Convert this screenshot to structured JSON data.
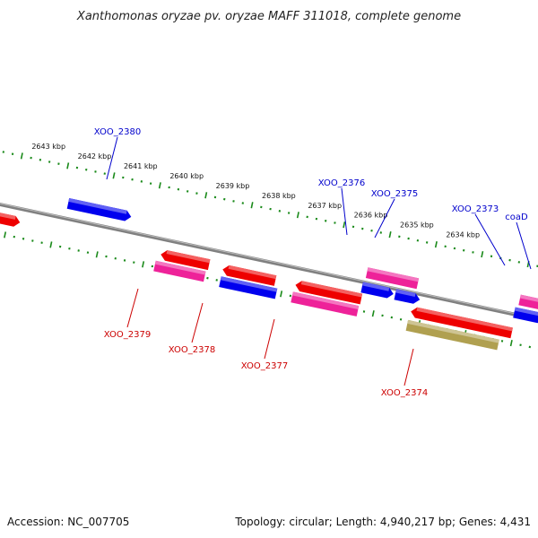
{
  "title": "Xanthomonas oryzae pv. oryzae MAFF 311018, complete genome",
  "footer": {
    "accession": "Accession: NC_007705",
    "stats": "Topology: circular; Length: 4,940,217 bp; Genes: 4,431"
  },
  "colors": {
    "backbone": "#808080",
    "tick_track": "#1a8a1a",
    "label_forward": "#0000cc",
    "label_reverse": "#cc0000",
    "gene_red": "#ee0000",
    "gene_blue": "#0000ee",
    "gene_pink": "#ee2299",
    "gene_olive": "#b0a050"
  },
  "scale": {
    "ticks": [
      {
        "label": "2643 kbp"
      },
      {
        "label": "2642 kbp"
      },
      {
        "label": "2641 kbp"
      },
      {
        "label": "2640 kbp"
      },
      {
        "label": "2639 kbp"
      },
      {
        "label": "2638 kbp"
      },
      {
        "label": "2637 kbp"
      },
      {
        "label": "2636 kbp"
      },
      {
        "label": "2635 kbp"
      },
      {
        "label": "2634 kbp"
      }
    ]
  },
  "gene_labels": [
    {
      "name": "XOO_2380",
      "strand": "forward"
    },
    {
      "name": "XOO_2376",
      "strand": "forward"
    },
    {
      "name": "XOO_2375",
      "strand": "forward"
    },
    {
      "name": "XOO_2373",
      "strand": "forward"
    },
    {
      "name": "coaD",
      "strand": "forward"
    },
    {
      "name": "XOO_2379",
      "strand": "reverse"
    },
    {
      "name": "XOO_2378",
      "strand": "reverse"
    },
    {
      "name": "XOO_2377",
      "strand": "reverse"
    },
    {
      "name": "XOO_2374",
      "strand": "reverse"
    }
  ]
}
